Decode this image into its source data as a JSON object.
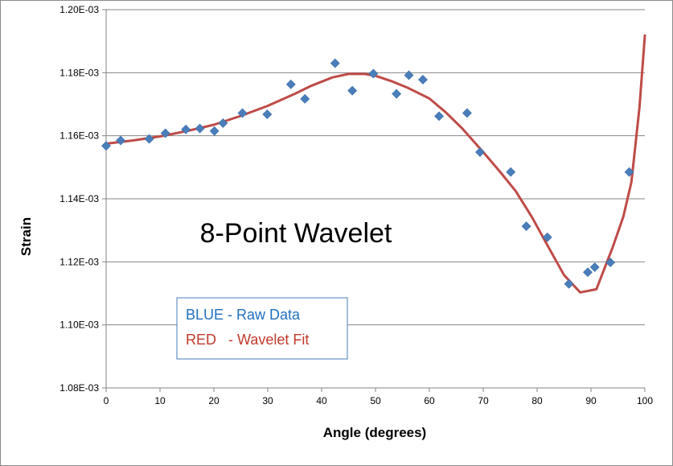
{
  "chart_data": {
    "type": "scatter",
    "title": "",
    "xlabel": "Angle (degrees)",
    "ylabel": "Strain",
    "xlim": [
      0,
      100
    ],
    "ylim": [
      0.00108,
      0.0012
    ],
    "x_ticks": [
      "0",
      "10",
      "20",
      "30",
      "40",
      "50",
      "60",
      "70",
      "80",
      "90",
      "100"
    ],
    "y_ticks": [
      "1.08E-03",
      "1.10E-03",
      "1.12E-03",
      "1.14E-03",
      "1.16E-03",
      "1.18E-03",
      "1.20E-03"
    ],
    "grid": "horizontal",
    "annotation": "8-Point  Wavelet",
    "legend_box": {
      "line1": "BLUE - Raw Data",
      "line2": "RED   - Wavelet Fit",
      "color1": "#1f6fbf",
      "color2": "#c0392b"
    },
    "series": [
      {
        "type": "scatter",
        "color": "#4a7ebb",
        "marker": "diamond",
        "points": [
          [
            0,
            0.0011568
          ],
          [
            2.7,
            0.0011585
          ],
          [
            8.0,
            0.001159
          ],
          [
            11.0,
            0.0011608
          ],
          [
            14.8,
            0.001162
          ],
          [
            17.4,
            0.0011623
          ],
          [
            20.1,
            0.0011615
          ],
          [
            21.7,
            0.001164
          ],
          [
            25.3,
            0.0011672
          ],
          [
            29.9,
            0.0011668
          ],
          [
            34.3,
            0.0011763
          ],
          [
            36.9,
            0.0011717
          ],
          [
            42.5,
            0.001183
          ],
          [
            45.7,
            0.0011743
          ],
          [
            49.6,
            0.0011797
          ],
          [
            53.9,
            0.0011733
          ],
          [
            56.2,
            0.0011792
          ],
          [
            58.8,
            0.0011778
          ],
          [
            61.8,
            0.0011662
          ],
          [
            67.0,
            0.0011672
          ],
          [
            69.4,
            0.0011548
          ],
          [
            75.1,
            0.0011485
          ],
          [
            78.0,
            0.0011313
          ],
          [
            81.9,
            0.0011278
          ],
          [
            85.9,
            0.001113
          ],
          [
            89.4,
            0.0011167
          ],
          [
            90.7,
            0.0011183
          ],
          [
            93.6,
            0.0011198
          ],
          [
            97.1,
            0.0011485
          ]
        ]
      },
      {
        "type": "line",
        "color": "#be4b48",
        "points": [
          [
            0,
            0.0011575
          ],
          [
            5,
            0.0011585
          ],
          [
            10,
            0.0011598
          ],
          [
            15,
            0.0011615
          ],
          [
            20,
            0.0011635
          ],
          [
            25,
            0.0011663
          ],
          [
            30,
            0.0011695
          ],
          [
            35,
            0.0011733
          ],
          [
            38,
            0.0011758
          ],
          [
            42,
            0.0011785
          ],
          [
            45,
            0.0011796
          ],
          [
            48,
            0.0011796
          ],
          [
            50,
            0.001179
          ],
          [
            53,
            0.0011773
          ],
          [
            56,
            0.0011752
          ],
          [
            60,
            0.0011718
          ],
          [
            63,
            0.0011675
          ],
          [
            66,
            0.0011625
          ],
          [
            70,
            0.0011548
          ],
          [
            73,
            0.0011488
          ],
          [
            76,
            0.0011425
          ],
          [
            79,
            0.0011343
          ],
          [
            82,
            0.001125
          ],
          [
            85,
            0.0011158
          ],
          [
            88,
            0.0011103
          ],
          [
            91,
            0.0011113
          ],
          [
            94,
            0.0011245
          ],
          [
            96,
            0.0011343
          ],
          [
            97.5,
            0.0011453
          ],
          [
            99,
            0.001169
          ],
          [
            100,
            0.0011918
          ]
        ]
      }
    ]
  }
}
